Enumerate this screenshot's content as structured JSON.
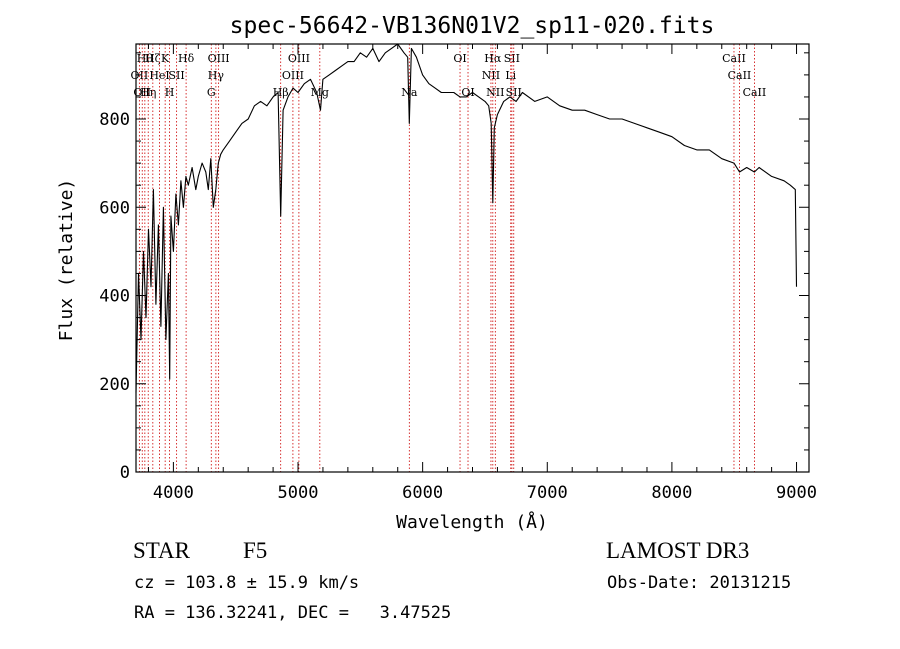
{
  "chart_data": {
    "type": "line",
    "title": "spec-56642-VB136N01V2_sp11-020.fits",
    "xlabel": "Wavelength (Å)",
    "ylabel": "Flux (relative)",
    "xlim": [
      3700,
      9100
    ],
    "ylim": [
      0,
      970
    ],
    "xticks": [
      4000,
      5000,
      6000,
      7000,
      8000,
      9000
    ],
    "yticks": [
      0,
      200,
      400,
      600,
      800
    ],
    "x_minor_step": 200,
    "y_minor_step": 50,
    "line_color": "#000000",
    "marker_color": "#cc0000",
    "series": [
      {
        "name": "flux",
        "x": [
          3700,
          3720,
          3740,
          3760,
          3780,
          3800,
          3820,
          3840,
          3860,
          3880,
          3900,
          3920,
          3940,
          3960,
          3970,
          3980,
          4000,
          4020,
          4040,
          4060,
          4080,
          4100,
          4120,
          4150,
          4180,
          4200,
          4230,
          4260,
          4280,
          4300,
          4320,
          4340,
          4360,
          4380,
          4400,
          4450,
          4500,
          4550,
          4600,
          4650,
          4700,
          4750,
          4800,
          4840,
          4861,
          4880,
          4920,
          4960,
          5000,
          5050,
          5100,
          5150,
          5180,
          5200,
          5250,
          5300,
          5350,
          5400,
          5450,
          5500,
          5550,
          5600,
          5650,
          5700,
          5750,
          5800,
          5850,
          5880,
          5893,
          5910,
          5950,
          6000,
          6050,
          6100,
          6150,
          6200,
          6250,
          6300,
          6350,
          6400,
          6450,
          6500,
          6530,
          6550,
          6563,
          6575,
          6600,
          6650,
          6700,
          6750,
          6800,
          6900,
          7000,
          7100,
          7200,
          7300,
          7400,
          7500,
          7600,
          7700,
          7800,
          7900,
          8000,
          8100,
          8200,
          8300,
          8400,
          8498,
          8542,
          8600,
          8662,
          8700,
          8800,
          8900,
          8950,
          8990,
          9000
        ],
        "values": [
          180,
          450,
          300,
          500,
          350,
          550,
          420,
          640,
          380,
          560,
          330,
          600,
          300,
          450,
          210,
          580,
          500,
          630,
          560,
          660,
          600,
          670,
          650,
          690,
          640,
          670,
          700,
          680,
          640,
          710,
          600,
          640,
          700,
          720,
          730,
          750,
          770,
          790,
          800,
          830,
          840,
          830,
          850,
          860,
          580,
          820,
          850,
          870,
          860,
          880,
          890,
          860,
          820,
          890,
          900,
          910,
          920,
          930,
          930,
          950,
          940,
          960,
          930,
          950,
          960,
          970,
          950,
          940,
          790,
          960,
          940,
          900,
          880,
          870,
          860,
          860,
          860,
          850,
          850,
          860,
          850,
          840,
          830,
          790,
          610,
          780,
          810,
          840,
          850,
          840,
          860,
          840,
          850,
          830,
          820,
          820,
          810,
          800,
          800,
          790,
          780,
          770,
          760,
          740,
          730,
          730,
          710,
          700,
          680,
          690,
          680,
          690,
          670,
          660,
          650,
          640,
          420
        ]
      }
    ],
    "line_markers": [
      {
        "wavelength": 3727,
        "row": 1,
        "label": "OII"
      },
      {
        "wavelength": 3750,
        "row": 2,
        "label": "OII"
      },
      {
        "wavelength": 3771,
        "row": 0,
        "label": "Hθ"
      },
      {
        "wavelength": 3798,
        "row": 2,
        "label": "Hη"
      },
      {
        "wavelength": 3835,
        "row": 0,
        "label": "Hζ"
      },
      {
        "wavelength": 3889,
        "row": 1,
        "label": "HeI"
      },
      {
        "wavelength": 3934,
        "row": 0,
        "label": "K"
      },
      {
        "wavelength": 3969,
        "row": 2,
        "label": "H"
      },
      {
        "wavelength": 4026,
        "row": 1,
        "label": "SII"
      },
      {
        "wavelength": 4102,
        "row": 0,
        "label": "Hδ"
      },
      {
        "wavelength": 4304,
        "row": 2,
        "label": "G"
      },
      {
        "wavelength": 4341,
        "row": 1,
        "label": "Hγ"
      },
      {
        "wavelength": 4363,
        "row": 0,
        "label": "OIII"
      },
      {
        "wavelength": 4861,
        "row": 2,
        "label": "Hβ"
      },
      {
        "wavelength": 4959,
        "row": 1,
        "label": "OIII"
      },
      {
        "wavelength": 5007,
        "row": 0,
        "label": "OIII"
      },
      {
        "wavelength": 5175,
        "row": 2,
        "label": "Mg"
      },
      {
        "wavelength": 5893,
        "row": 2,
        "label": "Na"
      },
      {
        "wavelength": 6300,
        "row": 0,
        "label": "OI"
      },
      {
        "wavelength": 6364,
        "row": 2,
        "label": "OI"
      },
      {
        "wavelength": 6548,
        "row": 1,
        "label": "NII"
      },
      {
        "wavelength": 6563,
        "row": 0,
        "label": "Hα"
      },
      {
        "wavelength": 6583,
        "row": 2,
        "label": "NII"
      },
      {
        "wavelength": 6707,
        "row": 1,
        "label": "Li"
      },
      {
        "wavelength": 6716,
        "row": 0,
        "label": "SII"
      },
      {
        "wavelength": 6731,
        "row": 2,
        "label": "SII"
      },
      {
        "wavelength": 8498,
        "row": 0,
        "label": "CaII"
      },
      {
        "wavelength": 8542,
        "row": 1,
        "label": "CaII"
      },
      {
        "wavelength": 8662,
        "row": 2,
        "label": "CaII"
      }
    ]
  },
  "info": {
    "object_class": "STAR",
    "subclass": "F5",
    "survey": "LAMOST DR3",
    "cz": "cz = 103.8 ± 15.9 km/s",
    "obs_date": "Obs-Date: 20131215",
    "radec": "RA = 136.32241, DEC =   3.47525"
  }
}
